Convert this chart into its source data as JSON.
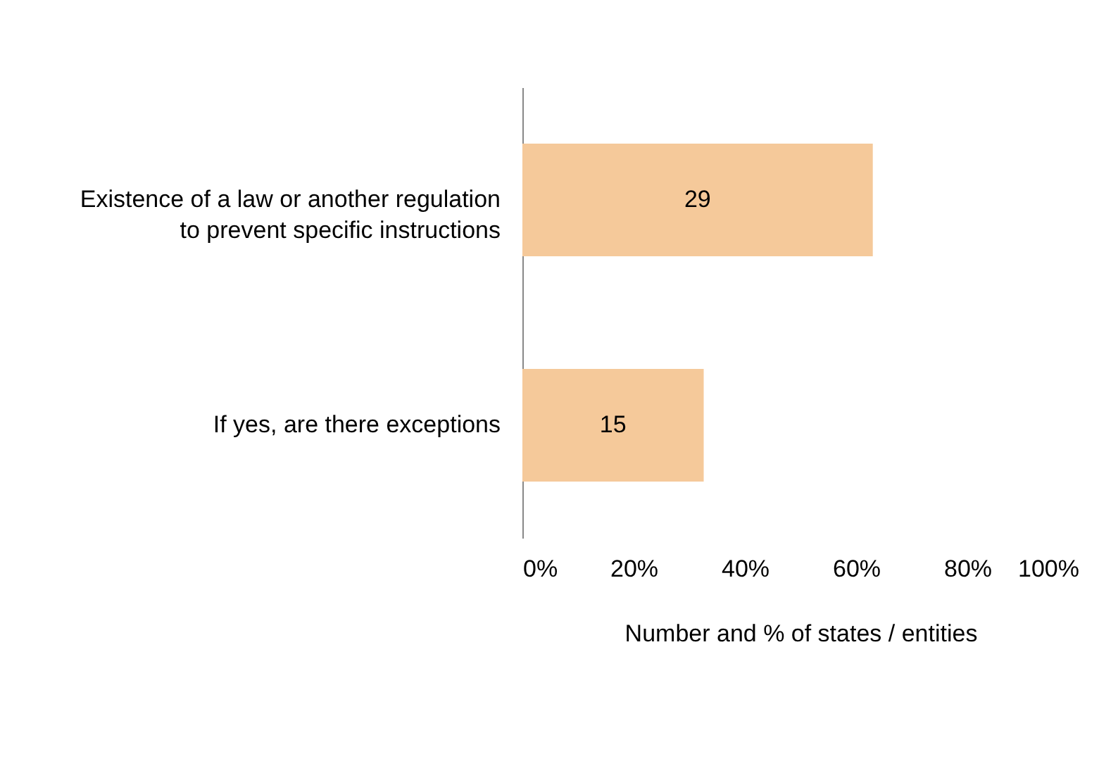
{
  "chart_data": {
    "type": "bar",
    "orientation": "horizontal",
    "xlabel": "Number and % of states / entities",
    "categories": [
      "Existence of a law or another regulation to prevent specific instructions",
      "If yes, are there exceptions"
    ],
    "values": [
      63,
      32.6
    ],
    "color": "#f5c99a",
    "annotations": [
      "29",
      "15"
    ],
    "xlim": [
      0,
      100
    ],
    "xticks": [
      {
        "value": 0,
        "label": "0%"
      },
      {
        "value": 20,
        "label": "20%"
      },
      {
        "value": 40,
        "label": "40%"
      },
      {
        "value": 60,
        "label": "60%"
      },
      {
        "value": 80,
        "label": "80%"
      },
      {
        "value": 100,
        "label": "100%"
      }
    ],
    "grid": false
  }
}
